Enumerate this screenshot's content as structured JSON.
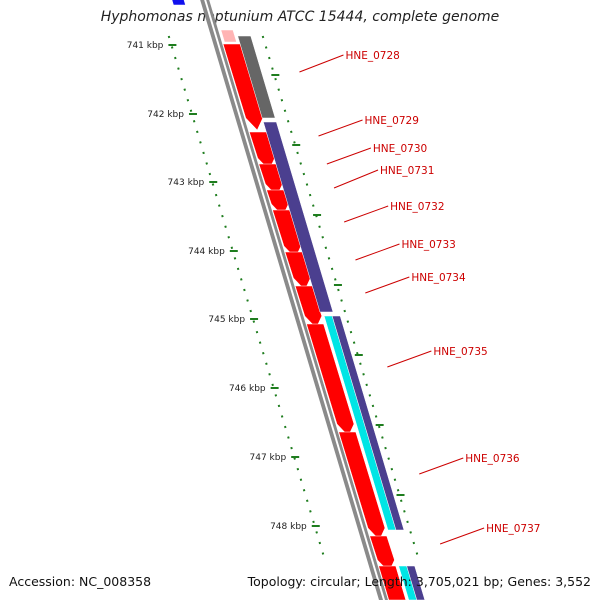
{
  "title": "Hyphomonas neptunium ATCC 15444, complete genome",
  "accession_label": "Accession: NC_008358",
  "summary_label": "Topology: circular; Length: 3,705,021 bp; Genes: 3,552",
  "ticks": [
    "741 kbp",
    "742 kbp",
    "743 kbp",
    "744 kbp",
    "745 kbp",
    "746 kbp",
    "747 kbp",
    "748 kbp"
  ],
  "genes": [
    {
      "label": "HNE_0728"
    },
    {
      "label": "HNE_0729"
    },
    {
      "label": "HNE_0730"
    },
    {
      "label": "HNE_0731"
    },
    {
      "label": "HNE_0732"
    },
    {
      "label": "HNE_0733"
    },
    {
      "label": "HNE_0734"
    },
    {
      "label": "HNE_0735"
    },
    {
      "label": "HNE_0736"
    },
    {
      "label": "HNE_0737"
    }
  ],
  "colors": {
    "cds": "#ff0000",
    "protein_blue": "#4b3f8f",
    "protein_gray": "#666666",
    "protein_cyan": "#00e5e5",
    "backbone": "#8a8a8a",
    "tick_green": "#1e7d1e",
    "label_red": "#cc0000"
  }
}
